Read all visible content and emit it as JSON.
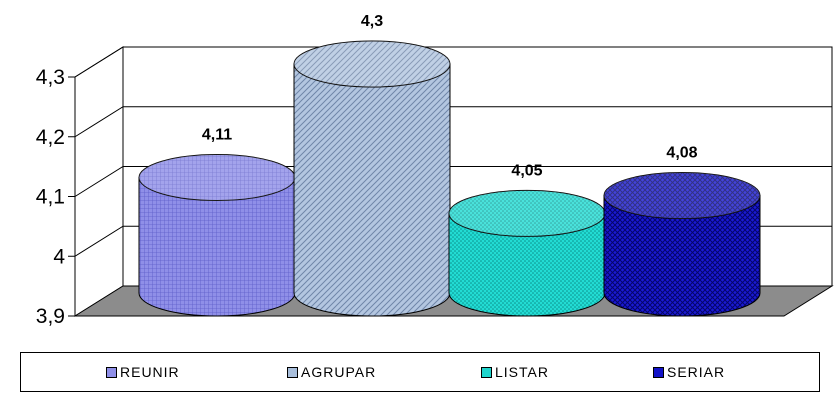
{
  "chart_data": {
    "type": "bar",
    "title": "",
    "xlabel": "",
    "ylabel": "",
    "ylim": [
      3.9,
      4.3
    ],
    "yticks": [
      "3,9",
      "4",
      "4,1",
      "4,2",
      "4,3"
    ],
    "grid": true,
    "legend_position": "bottom",
    "series": [
      {
        "name": "REUNIR",
        "value": 4.11,
        "label": "4,11",
        "color": "#8f8fe8"
      },
      {
        "name": "AGRUPAR",
        "value": 4.3,
        "label": "4,3",
        "color": "#a9bfdc"
      },
      {
        "name": "LISTAR",
        "value": 4.05,
        "label": "4,05",
        "color": "#1ed4cc"
      },
      {
        "name": "SERIAR",
        "value": 4.08,
        "label": "4,08",
        "color": "#1212c8"
      }
    ]
  }
}
